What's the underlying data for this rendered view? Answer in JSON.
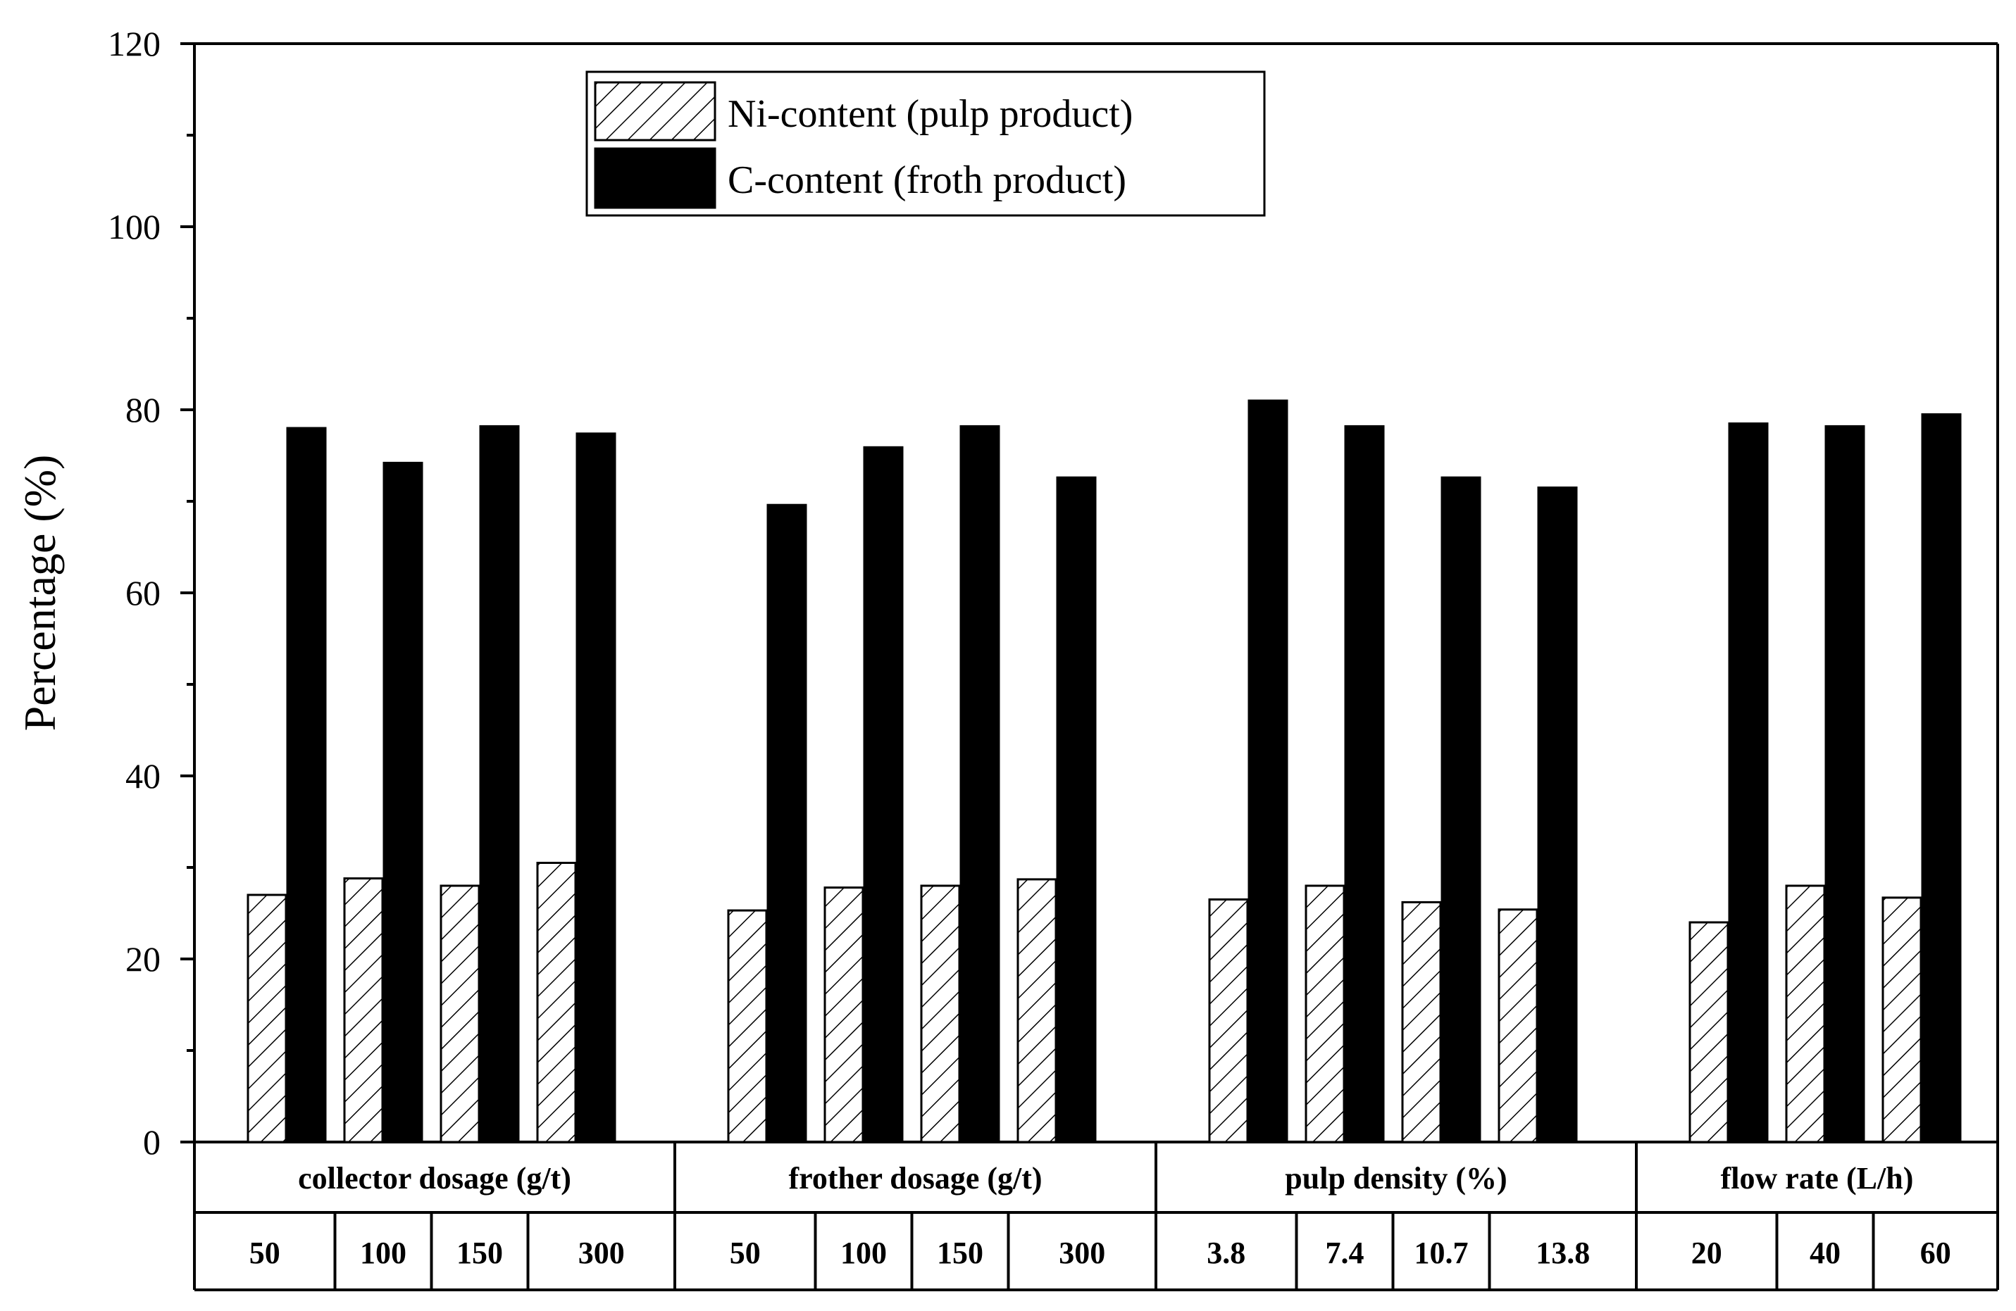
{
  "chart_data": {
    "type": "bar",
    "ylabel": "Percentage (%)",
    "ylim": [
      0,
      120
    ],
    "y_ticks": [
      "0",
      "20",
      "40",
      "60",
      "80",
      "100",
      "120"
    ],
    "legend_position": "top-left",
    "series": [
      {
        "name": "Ni-content (pulp product)",
        "pattern": "hatched",
        "color": "#ffffff",
        "values": [
          27.0,
          28.8,
          28.0,
          30.5,
          25.3,
          27.8,
          28.0,
          28.7,
          26.5,
          28.0,
          26.2,
          25.4,
          24.0,
          28.0,
          26.7
        ]
      },
      {
        "name": "C-content (froth product)",
        "pattern": "solid",
        "color": "#000000",
        "values": [
          78.0,
          74.2,
          78.2,
          77.4,
          69.6,
          75.9,
          78.2,
          72.6,
          81.0,
          78.2,
          72.6,
          71.5,
          78.5,
          78.2,
          79.5
        ]
      }
    ],
    "groups": [
      {
        "label": "collector dosage (g/t)",
        "categories": [
          "50",
          "100",
          "150",
          "300"
        ]
      },
      {
        "label": "frother dosage (g/t)",
        "categories": [
          "50",
          "100",
          "150",
          "300"
        ]
      },
      {
        "label": "pulp density (%)",
        "categories": [
          "3.8",
          "7.4",
          "10.7",
          "13.8"
        ]
      },
      {
        "label": "flow rate (L/h)",
        "categories": [
          "20",
          "40",
          "60"
        ]
      }
    ]
  }
}
